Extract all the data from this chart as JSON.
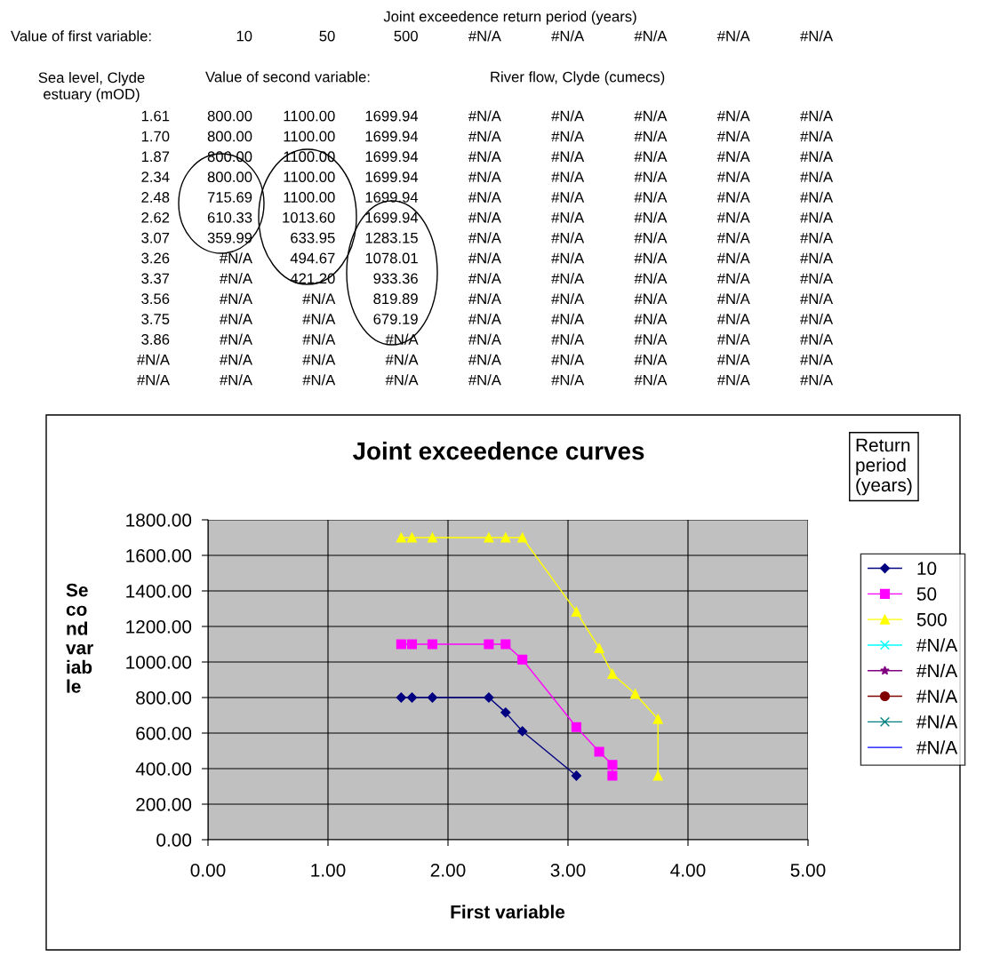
{
  "chart_data": {
    "type": "line",
    "title": "Joint exceedence curves",
    "xlabel": "First variable",
    "ylabel": "Se\nco\nnd\nvar\niab\nle",
    "legend_title": "Return\nperiod\n(years)",
    "xlim": [
      0,
      5
    ],
    "xticks": [
      {
        "value": 0,
        "label": "0.00"
      },
      {
        "value": 1,
        "label": "1.00"
      },
      {
        "value": 2,
        "label": "2.00"
      },
      {
        "value": 3,
        "label": "3.00"
      },
      {
        "value": 4,
        "label": "4.00"
      },
      {
        "value": 5,
        "label": "5.00"
      }
    ],
    "ylim": [
      0,
      1800
    ],
    "yticks": [
      {
        "value": 0,
        "label": "0.00"
      },
      {
        "value": 200,
        "label": "200.00"
      },
      {
        "value": 400,
        "label": "400.00"
      },
      {
        "value": 600,
        "label": "600.00"
      },
      {
        "value": 800,
        "label": "800.00"
      },
      {
        "value": 1000,
        "label": "1000.00"
      },
      {
        "value": 1200,
        "label": "1200.00"
      },
      {
        "value": 1400,
        "label": "1400.00"
      },
      {
        "value": 1600,
        "label": "1600.00"
      },
      {
        "value": 1800,
        "label": "1800.00"
      }
    ],
    "grid": true,
    "legend": "right",
    "line_style": "solid",
    "series": [
      {
        "name": "10",
        "color": "#000080",
        "marker": "diamond",
        "x": [
          1.61,
          1.7,
          1.87,
          2.34,
          2.48,
          2.62,
          3.07
        ],
        "values": [
          800.0,
          800.0,
          800.0,
          800.0,
          715.69,
          610.33,
          359.99
        ]
      },
      {
        "name": "50",
        "color": "#ff00ff",
        "marker": "square",
        "x": [
          1.61,
          1.7,
          1.87,
          2.34,
          2.48,
          2.62,
          3.07,
          3.26,
          3.37,
          3.37
        ],
        "values": [
          1100.0,
          1100.0,
          1100.0,
          1100.0,
          1100.0,
          1013.6,
          633.95,
          494.67,
          421.2,
          360
        ]
      },
      {
        "name": "500",
        "color": "#ffff00",
        "marker": "triangle",
        "x": [
          1.61,
          1.7,
          1.87,
          2.34,
          2.48,
          2.62,
          3.07,
          3.26,
          3.37,
          3.56,
          3.75,
          3.75
        ],
        "values": [
          1699.94,
          1699.94,
          1699.94,
          1699.94,
          1699.94,
          1699.94,
          1283.15,
          1078.01,
          933.36,
          819.89,
          679.19,
          360
        ]
      },
      {
        "name": "#N/A",
        "color": "#00ffff",
        "marker": "cross"
      },
      {
        "name": "#N/A",
        "color": "#800080",
        "marker": "star"
      },
      {
        "name": "#N/A",
        "color": "#800000",
        "marker": "circle"
      },
      {
        "name": "#N/A",
        "color": "#008080",
        "marker": "cross"
      },
      {
        "name": "#N/A",
        "color": "#0000ff",
        "marker": "none"
      }
    ],
    "annotations": [
      "Joint exceedence return period (years)",
      "Value of first variable:\t10\t50\t500\t#N/A\t#N/A\t#N/A\t#N/A\t#N/A",
      "Sea level, Clyde\nestuary (mOD)",
      "Value of second variable:",
      "River flow, Clyde (cumecs)",
      "1.61\t800.00\t1100.00\t1699.94\t#N/A\t#N/A\t#N/A\t#N/A\t#N/A",
      "1.70\t800.00\t1100.00\t1699.94\t#N/A\t#N/A\t#N/A\t#N/A\t#N/A",
      "1.87\t800.00\t1100.00\t1699.94\t#N/A\t#N/A\t#N/A\t#N/A\t#N/A",
      "2.34\t800.00\t1100.00\t1699.94\t#N/A\t#N/A\t#N/A\t#N/A\t#N/A",
      "2.48\t715.69\t1100.00\t1699.94\t#N/A\t#N/A\t#N/A\t#N/A\t#N/A",
      "2.62\t610.33\t1013.60\t1699.94\t#N/A\t#N/A\t#N/A\t#N/A\t#N/A",
      "3.07\t359.99\t633.95\t1283.15\t#N/A\t#N/A\t#N/A\t#N/A\t#N/A",
      "3.26\t#N/A\t494.67\t1078.01\t#N/A\t#N/A\t#N/A\t#N/A\t#N/A",
      "3.37\t#N/A\t421.20\t933.36\t#N/A\t#N/A\t#N/A\t#N/A\t#N/A",
      "3.56\t#N/A\t#N/A\t819.89\t#N/A\t#N/A\t#N/A\t#N/A\t#N/A",
      "3.75\t#N/A\t#N/A\t679.19\t#N/A\t#N/A\t#N/A\t#N/A\t#N/A",
      "3.86\t#N/A\t#N/A\t#N/A\t#N/A\t#N/A\t#N/A\t#N/A\t#N/A",
      "#N/A\t#N/A\t#N/A\t#N/A\t#N/A\t#N/A\t#N/A\t#N/A\t#N/A",
      "#N/A\t#N/A\t#N/A\t#N/A\t#N/A\t#N/A\t#N/A\t#N/A\t#N/A"
    ]
  }
}
